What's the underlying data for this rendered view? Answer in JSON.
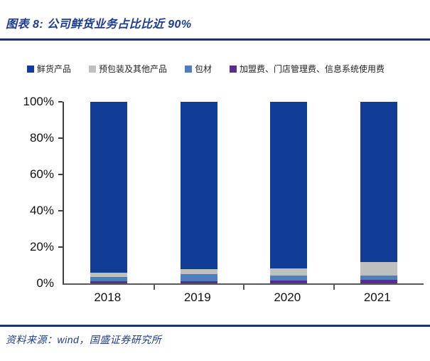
{
  "header": {
    "title": "图表 8:  公司鲜货业务占比比近 90%"
  },
  "footer": {
    "source": "资料来源：wind，国盛证券研究所"
  },
  "colors": {
    "accent_navy": "#18366E",
    "title_blue": "#1D3B92",
    "axis_gray": "#595959",
    "bar_dark_blue": "#113D96",
    "bar_gray": "#BDBFC1",
    "bar_steel_blue": "#4E7EC0",
    "bar_purple": "#5B2D91"
  },
  "chart_data": {
    "type": "bar",
    "stacked": true,
    "title": "公司鲜货业务占比比近 90%",
    "categories": [
      "2018",
      "2019",
      "2020",
      "2021"
    ],
    "series": [
      {
        "name": "鲜货产品",
        "color": "#113D96",
        "values": [
          94.2,
          92.0,
          91.9,
          88.3
        ]
      },
      {
        "name": "预包装及其他产品",
        "color": "#BDBFC1",
        "values": [
          2.4,
          3.0,
          3.9,
          7.5
        ]
      },
      {
        "name": "包材",
        "color": "#4E7EC0",
        "values": [
          2.4,
          3.8,
          2.6,
          2.4
        ]
      },
      {
        "name": "加盟费、门店管理费、信息系统使用费",
        "color": "#5B2D91",
        "values": [
          1.0,
          1.2,
          1.6,
          1.8
        ]
      }
    ],
    "xlabel": "",
    "ylabel": "",
    "ylim": [
      0,
      100
    ],
    "yticks": [
      {
        "label": "0%",
        "value": 0
      },
      {
        "label": "20%",
        "value": 20
      },
      {
        "label": "40%",
        "value": 40
      },
      {
        "label": "60%",
        "value": 60
      },
      {
        "label": "80%",
        "value": 80
      },
      {
        "label": "100%",
        "value": 100
      }
    ],
    "legend_position": "top",
    "grid": false
  }
}
